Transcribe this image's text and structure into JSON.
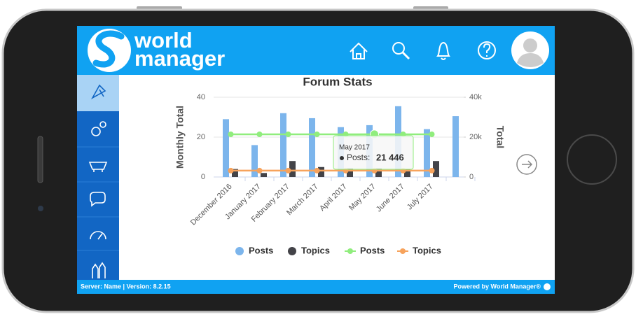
{
  "header": {
    "logo_top": "world",
    "logo_bottom": "manager"
  },
  "footer": {
    "left": "Server: Name |  Version: 8.2.15",
    "right": "Powered by World Manager®"
  },
  "chart_data": {
    "type": "bar",
    "title": "Forum Stats",
    "categories": [
      "December 2016",
      "January 2017",
      "February 2017",
      "March 2017",
      "April 2017",
      "May 2017",
      "June 2017",
      "July 2017",
      null
    ],
    "series": [
      {
        "name": "Posts",
        "color": "#7cb5ec",
        "type": "bar",
        "values": [
          29,
          16,
          32,
          29.5,
          25,
          26,
          35.5,
          24,
          30.5
        ]
      },
      {
        "name": "Topics",
        "color": "#434348",
        "type": "bar",
        "values": [
          4,
          2,
          8,
          5,
          4.5,
          4.5,
          4,
          8,
          null
        ]
      },
      {
        "name": "Posts",
        "color": "#90ed7d",
        "type": "line",
        "axis": "y2",
        "values": [
          21400,
          21400,
          21400,
          21400,
          21400,
          21446,
          21400,
          21400,
          null
        ],
        "value_labels": [
          null,
          null,
          null,
          null,
          null,
          "21 446",
          null,
          null,
          null
        ]
      },
      {
        "name": "Topics",
        "color": "#f7a35c",
        "type": "line",
        "axis": "y2",
        "values": [
          3200,
          3200,
          3200,
          3200,
          3200,
          3200,
          3200,
          3200,
          null
        ]
      }
    ],
    "ylabel": "Monthly Total",
    "y2label": "Total",
    "ylim": [
      0,
      40
    ],
    "yticks": [
      0,
      20,
      40
    ],
    "y2lim": [
      0,
      40000
    ],
    "y2ticks": [
      0,
      {
        "value": 20000,
        "label": "20k"
      },
      {
        "value": 40000,
        "label": "40k"
      }
    ],
    "grid": true,
    "legend": "bottom",
    "tooltip": {
      "index": 5,
      "series": 2,
      "label": "Posts:"
    }
  }
}
